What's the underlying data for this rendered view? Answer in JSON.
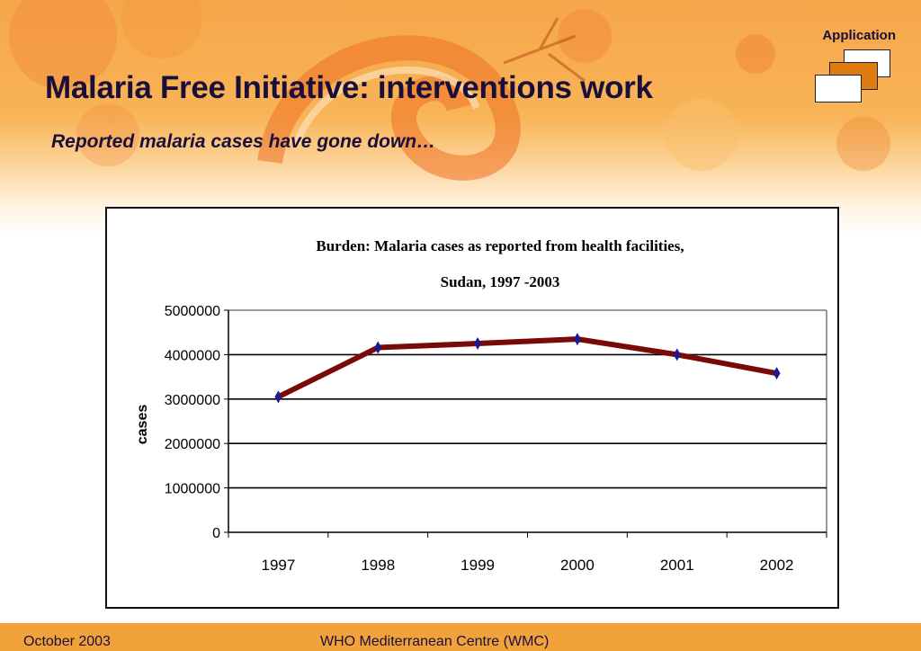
{
  "slide": {
    "title": "Malaria Free Initiative: interventions work",
    "subtitle": "Reported malaria cases have gone down…",
    "section_label": "Application",
    "footer_date": "October 2003",
    "footer_org": "WHO Mediterranean Centre (WMC)"
  },
  "colors": {
    "banner": "#f6a64a",
    "footer": "#f2a23a",
    "line": "#7a0a08",
    "marker": "#1c1a8c",
    "title_text": "#1a0f3a"
  },
  "chart_data": {
    "type": "line",
    "title_lines": [
      "Burden: Malaria cases as reported from health facilities,",
      "Sudan, 1997 -2003"
    ],
    "xlabel": "",
    "ylabel": "cases",
    "categories": [
      "1997",
      "1998",
      "1999",
      "2000",
      "2001",
      "2002"
    ],
    "series": [
      {
        "values": [
          3050000,
          4160000,
          4250000,
          4350000,
          4000000,
          3580000
        ]
      }
    ],
    "ylim": [
      0,
      5000000
    ],
    "yticks": [
      0,
      1000000,
      2000000,
      3000000,
      4000000,
      5000000
    ],
    "grid": true,
    "legend": "none"
  }
}
